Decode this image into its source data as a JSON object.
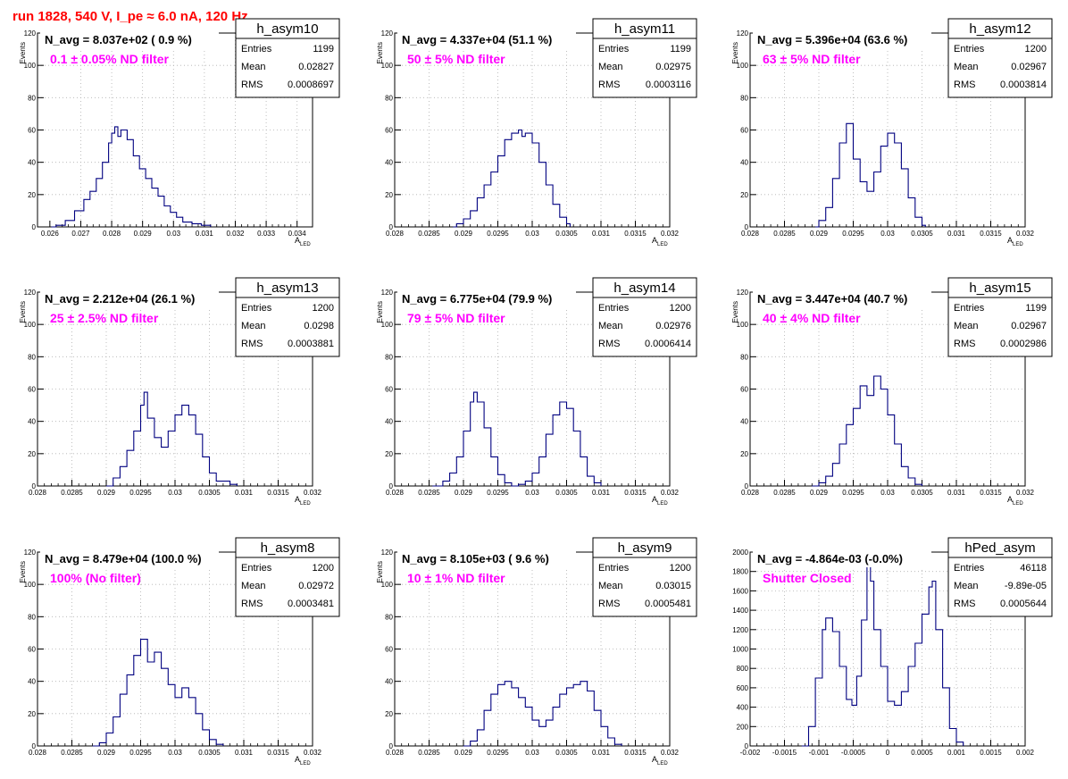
{
  "canvas_title": "run 1828,   540 V, I_pe ≈ 6.0 nA, 120 Hz",
  "colors": {
    "title": "#ff0000",
    "hist": "#000080",
    "annotation": "#ff00ff",
    "grid": "#b0b0b0"
  },
  "chart_data": [
    {
      "type": "histogram",
      "name": "h_asym10",
      "title_text": "N_avg = 8.037e+02 ( 0.9 %)",
      "annotation": "0.1 ± 0.05% ND filter",
      "stats": {
        "entries_label": "Entries",
        "entries": "1199",
        "mean_label": "Mean",
        "mean": "0.02827",
        "rms_label": "RMS",
        "rms": "0.0008697"
      },
      "ylabel": "Events",
      "xlabel": "A",
      "xlabel_sub": "LED",
      "xlim": [
        0.0256,
        0.0345
      ],
      "ylim": [
        0,
        120
      ],
      "xticks": [
        "0.026",
        "0.027",
        "0.028",
        "0.029",
        "0.03",
        "0.031",
        "0.032",
        "0.033",
        "0.034"
      ],
      "xtick_values": [
        0.026,
        0.027,
        0.028,
        0.029,
        0.03,
        0.031,
        0.032,
        0.033,
        0.034
      ],
      "yticks": [
        0,
        20,
        40,
        60,
        80,
        100,
        120
      ],
      "curve": [
        [
          0.02605,
          0
        ],
        [
          0.0262,
          1
        ],
        [
          0.0265,
          4
        ],
        [
          0.0268,
          10
        ],
        [
          0.0271,
          17
        ],
        [
          0.0273,
          22
        ],
        [
          0.0275,
          30
        ],
        [
          0.0277,
          40
        ],
        [
          0.0279,
          52
        ],
        [
          0.028,
          58
        ],
        [
          0.0281,
          62
        ],
        [
          0.0282,
          56
        ],
        [
          0.0283,
          60
        ],
        [
          0.0285,
          54
        ],
        [
          0.0287,
          44
        ],
        [
          0.0289,
          36
        ],
        [
          0.0291,
          30
        ],
        [
          0.0293,
          24
        ],
        [
          0.0295,
          19
        ],
        [
          0.0297,
          13
        ],
        [
          0.0299,
          9
        ],
        [
          0.0301,
          6
        ],
        [
          0.0303,
          3
        ],
        [
          0.0306,
          2
        ],
        [
          0.0309,
          1
        ],
        [
          0.0312,
          0
        ]
      ]
    },
    {
      "type": "histogram",
      "name": "h_asym11",
      "title_text": "N_avg = 4.337e+04 (51.1 %)",
      "annotation": "50 ± 5% ND filter",
      "stats": {
        "entries_label": "Entries",
        "entries": "1199",
        "mean_label": "Mean",
        "mean": "0.02975",
        "rms_label": "RMS",
        "rms": "0.0003116"
      },
      "ylabel": "Events",
      "xlabel": "A",
      "xlabel_sub": "LED",
      "xlim": [
        0.028,
        0.032
      ],
      "ylim": [
        0,
        120
      ],
      "xticks": [
        "0.028",
        "0.0285",
        "0.029",
        "0.0295",
        "0.03",
        "0.0305",
        "0.031",
        "0.0315",
        "0.032"
      ],
      "xtick_values": [
        0.028,
        0.0285,
        0.029,
        0.0295,
        0.03,
        0.0305,
        0.031,
        0.0315,
        0.032
      ],
      "yticks": [
        0,
        20,
        40,
        60,
        80,
        100,
        120
      ],
      "curve": [
        [
          0.02885,
          0
        ],
        [
          0.0289,
          2
        ],
        [
          0.029,
          5
        ],
        [
          0.0291,
          10
        ],
        [
          0.0292,
          18
        ],
        [
          0.0293,
          26
        ],
        [
          0.0294,
          34
        ],
        [
          0.0295,
          44
        ],
        [
          0.0296,
          54
        ],
        [
          0.0297,
          58
        ],
        [
          0.0298,
          60
        ],
        [
          0.02985,
          56
        ],
        [
          0.0299,
          58
        ],
        [
          0.03,
          52
        ],
        [
          0.0301,
          40
        ],
        [
          0.0302,
          26
        ],
        [
          0.0303,
          14
        ],
        [
          0.0304,
          6
        ],
        [
          0.0305,
          2
        ],
        [
          0.03055,
          0
        ]
      ]
    },
    {
      "type": "histogram",
      "name": "h_asym12",
      "title_text": "N_avg = 5.396e+04 (63.6 %)",
      "annotation": "63 ± 5% ND filter",
      "stats": {
        "entries_label": "Entries",
        "entries": "1200",
        "mean_label": "Mean",
        "mean": "0.02967",
        "rms_label": "RMS",
        "rms": "0.0003814"
      },
      "ylabel": "Events",
      "xlabel": "A",
      "xlabel_sub": "LED",
      "xlim": [
        0.028,
        0.032
      ],
      "ylim": [
        0,
        120
      ],
      "xticks": [
        "0.028",
        "0.0285",
        "0.029",
        "0.0295",
        "0.03",
        "0.0305",
        "0.031",
        "0.0315",
        "0.032"
      ],
      "xtick_values": [
        0.028,
        0.0285,
        0.029,
        0.0295,
        0.03,
        0.0305,
        0.031,
        0.0315,
        0.032
      ],
      "yticks": [
        0,
        20,
        40,
        60,
        80,
        100,
        120
      ],
      "curve": [
        [
          0.02895,
          0
        ],
        [
          0.029,
          4
        ],
        [
          0.0291,
          12
        ],
        [
          0.0292,
          30
        ],
        [
          0.0293,
          52
        ],
        [
          0.0294,
          64
        ],
        [
          0.0295,
          42
        ],
        [
          0.0296,
          28
        ],
        [
          0.0297,
          22
        ],
        [
          0.0298,
          34
        ],
        [
          0.0299,
          50
        ],
        [
          0.03,
          58
        ],
        [
          0.0301,
          52
        ],
        [
          0.0302,
          36
        ],
        [
          0.0303,
          18
        ],
        [
          0.0304,
          6
        ],
        [
          0.0305,
          1
        ],
        [
          0.03055,
          0
        ]
      ]
    },
    {
      "type": "histogram",
      "name": "h_asym13",
      "title_text": "N_avg = 2.212e+04 (26.1 %)",
      "annotation": "25 ± 2.5% ND filter",
      "stats": {
        "entries_label": "Entries",
        "entries": "1200",
        "mean_label": "Mean",
        "mean": "0.0298",
        "rms_label": "RMS",
        "rms": "0.0003881"
      },
      "ylabel": "Events",
      "xlabel": "A",
      "xlabel_sub": "LED",
      "xlim": [
        0.028,
        0.032
      ],
      "ylim": [
        0,
        120
      ],
      "xticks": [
        "0.028",
        "0.0285",
        "0.029",
        "0.0295",
        "0.03",
        "0.0305",
        "0.031",
        "0.0315",
        "0.032"
      ],
      "xtick_values": [
        0.028,
        0.0285,
        0.029,
        0.0295,
        0.03,
        0.0305,
        0.031,
        0.0315,
        0.032
      ],
      "yticks": [
        0,
        20,
        40,
        60,
        80,
        100,
        120
      ],
      "curve": [
        [
          0.029,
          0
        ],
        [
          0.0291,
          5
        ],
        [
          0.0292,
          12
        ],
        [
          0.0293,
          22
        ],
        [
          0.0294,
          34
        ],
        [
          0.0295,
          50
        ],
        [
          0.02955,
          58
        ],
        [
          0.0296,
          42
        ],
        [
          0.0297,
          30
        ],
        [
          0.0298,
          24
        ],
        [
          0.0299,
          34
        ],
        [
          0.03,
          44
        ],
        [
          0.0301,
          50
        ],
        [
          0.0302,
          44
        ],
        [
          0.0303,
          32
        ],
        [
          0.0304,
          18
        ],
        [
          0.0305,
          8
        ],
        [
          0.0306,
          3
        ],
        [
          0.0308,
          1
        ],
        [
          0.0309,
          0
        ]
      ]
    },
    {
      "type": "histogram",
      "name": "h_asym14",
      "title_text": "N_avg = 6.775e+04 (79.9 %)",
      "annotation": "79 ± 5% ND filter",
      "stats": {
        "entries_label": "Entries",
        "entries": "1200",
        "mean_label": "Mean",
        "mean": "0.02976",
        "rms_label": "RMS",
        "rms": "0.0006414"
      },
      "ylabel": "Events",
      "xlabel": "A",
      "xlabel_sub": "LED",
      "xlim": [
        0.028,
        0.032
      ],
      "ylim": [
        0,
        120
      ],
      "xticks": [
        "0.028",
        "0.0285",
        "0.029",
        "0.0295",
        "0.03",
        "0.0305",
        "0.031",
        "0.0315",
        "0.032"
      ],
      "xtick_values": [
        0.028,
        0.0285,
        0.029,
        0.0295,
        0.03,
        0.0305,
        0.031,
        0.0315,
        0.032
      ],
      "yticks": [
        0,
        20,
        40,
        60,
        80,
        100,
        120
      ],
      "curve": [
        [
          0.02855,
          0
        ],
        [
          0.0287,
          3
        ],
        [
          0.0288,
          8
        ],
        [
          0.0289,
          18
        ],
        [
          0.029,
          34
        ],
        [
          0.0291,
          52
        ],
        [
          0.02915,
          58
        ],
        [
          0.0292,
          52
        ],
        [
          0.0293,
          36
        ],
        [
          0.0294,
          18
        ],
        [
          0.0295,
          7
        ],
        [
          0.0296,
          2
        ],
        [
          0.0297,
          0
        ],
        [
          0.0298,
          1
        ],
        [
          0.0299,
          3
        ],
        [
          0.03,
          8
        ],
        [
          0.0301,
          18
        ],
        [
          0.0302,
          32
        ],
        [
          0.0303,
          44
        ],
        [
          0.0304,
          52
        ],
        [
          0.0305,
          48
        ],
        [
          0.0306,
          34
        ],
        [
          0.0307,
          18
        ],
        [
          0.0308,
          6
        ],
        [
          0.0309,
          2
        ],
        [
          0.031,
          0
        ]
      ]
    },
    {
      "type": "histogram",
      "name": "h_asym15",
      "title_text": "N_avg = 3.447e+04 (40.7 %)",
      "annotation": "40 ± 4% ND filter",
      "stats": {
        "entries_label": "Entries",
        "entries": "1199",
        "mean_label": "Mean",
        "mean": "0.02967",
        "rms_label": "RMS",
        "rms": "0.0002986"
      },
      "ylabel": "Events",
      "xlabel": "A",
      "xlabel_sub": "LED",
      "xlim": [
        0.028,
        0.032
      ],
      "ylim": [
        0,
        120
      ],
      "xticks": [
        "0.028",
        "0.0285",
        "0.029",
        "0.0295",
        "0.03",
        "0.0305",
        "0.031",
        "0.0315",
        "0.032"
      ],
      "xtick_values": [
        0.028,
        0.0285,
        0.029,
        0.0295,
        0.03,
        0.0305,
        0.031,
        0.0315,
        0.032
      ],
      "yticks": [
        0,
        20,
        40,
        60,
        80,
        100,
        120
      ],
      "curve": [
        [
          0.0289,
          0
        ],
        [
          0.029,
          2
        ],
        [
          0.0291,
          6
        ],
        [
          0.0292,
          14
        ],
        [
          0.0293,
          26
        ],
        [
          0.0294,
          38
        ],
        [
          0.0295,
          48
        ],
        [
          0.0296,
          62
        ],
        [
          0.0297,
          56
        ],
        [
          0.0298,
          68
        ],
        [
          0.0299,
          60
        ],
        [
          0.03,
          44
        ],
        [
          0.0301,
          26
        ],
        [
          0.0302,
          12
        ],
        [
          0.0303,
          5
        ],
        [
          0.0304,
          1
        ],
        [
          0.0305,
          0
        ]
      ]
    },
    {
      "type": "histogram",
      "name": "h_asym8",
      "title_text": "N_avg = 8.479e+04 (100.0 %)",
      "annotation": "100% (No filter)",
      "stats": {
        "entries_label": "Entries",
        "entries": "1200",
        "mean_label": "Mean",
        "mean": "0.02972",
        "rms_label": "RMS",
        "rms": "0.0003481"
      },
      "ylabel": "Events",
      "xlabel": "A",
      "xlabel_sub": "LED",
      "xlim": [
        0.028,
        0.032
      ],
      "ylim": [
        0,
        120
      ],
      "xticks": [
        "0.028",
        "0.0285",
        "0.029",
        "0.0295",
        "0.03",
        "0.0305",
        "0.031",
        "0.0315",
        "0.032"
      ],
      "xtick_values": [
        0.028,
        0.0285,
        0.029,
        0.0295,
        0.03,
        0.0305,
        0.031,
        0.0315,
        0.032
      ],
      "yticks": [
        0,
        20,
        40,
        60,
        80,
        100,
        120
      ],
      "curve": [
        [
          0.0288,
          0
        ],
        [
          0.0289,
          2
        ],
        [
          0.029,
          8
        ],
        [
          0.0291,
          18
        ],
        [
          0.0292,
          32
        ],
        [
          0.0293,
          44
        ],
        [
          0.0294,
          56
        ],
        [
          0.0295,
          66
        ],
        [
          0.0296,
          52
        ],
        [
          0.0297,
          58
        ],
        [
          0.0298,
          48
        ],
        [
          0.0299,
          38
        ],
        [
          0.03,
          30
        ],
        [
          0.0301,
          36
        ],
        [
          0.0302,
          30
        ],
        [
          0.0303,
          20
        ],
        [
          0.0304,
          10
        ],
        [
          0.0305,
          4
        ],
        [
          0.0306,
          1
        ],
        [
          0.0307,
          0
        ]
      ]
    },
    {
      "type": "histogram",
      "name": "h_asym9",
      "title_text": "N_avg = 8.105e+03 ( 9.6 %)",
      "annotation": "10 ± 1% ND filter",
      "stats": {
        "entries_label": "Entries",
        "entries": "1200",
        "mean_label": "Mean",
        "mean": "0.03015",
        "rms_label": "RMS",
        "rms": "0.0005481"
      },
      "ylabel": "Events",
      "xlabel": "A",
      "xlabel_sub": "LED",
      "xlim": [
        0.028,
        0.032
      ],
      "ylim": [
        0,
        120
      ],
      "xticks": [
        "0.028",
        "0.0285",
        "0.029",
        "0.0295",
        "0.03",
        "0.0305",
        "0.031",
        "0.0315",
        "0.032"
      ],
      "xtick_values": [
        0.028,
        0.0285,
        0.029,
        0.0295,
        0.03,
        0.0305,
        0.031,
        0.0315,
        0.032
      ],
      "yticks": [
        0,
        20,
        40,
        60,
        80,
        100,
        120
      ],
      "curve": [
        [
          0.029,
          0
        ],
        [
          0.0291,
          3
        ],
        [
          0.0292,
          10
        ],
        [
          0.0293,
          22
        ],
        [
          0.0294,
          32
        ],
        [
          0.0295,
          38
        ],
        [
          0.0296,
          40
        ],
        [
          0.0297,
          36
        ],
        [
          0.0298,
          30
        ],
        [
          0.0299,
          24
        ],
        [
          0.03,
          16
        ],
        [
          0.0301,
          12
        ],
        [
          0.0302,
          16
        ],
        [
          0.0303,
          24
        ],
        [
          0.0304,
          32
        ],
        [
          0.0305,
          36
        ],
        [
          0.0306,
          38
        ],
        [
          0.0307,
          40
        ],
        [
          0.0308,
          34
        ],
        [
          0.0309,
          22
        ],
        [
          0.031,
          12
        ],
        [
          0.0311,
          5
        ],
        [
          0.0312,
          1
        ],
        [
          0.0313,
          0
        ]
      ]
    },
    {
      "type": "histogram",
      "name": "hPed_asym",
      "title_text": "N_avg = -4.864e-03 (-0.0%)",
      "annotation": "Shutter Closed",
      "stats": {
        "entries_label": "Entries",
        "entries": "46118",
        "mean_label": "Mean",
        "mean": "-9.89e-05",
        "rms_label": "RMS",
        "rms": "0.0005644"
      },
      "ylabel": "",
      "xlabel": "",
      "xlabel_sub": "",
      "xlim": [
        -0.002,
        0.002
      ],
      "ylim": [
        0,
        2000
      ],
      "xticks": [
        "-0.002",
        "-0.0015",
        "-0.001",
        "-0.0005",
        "0",
        "0.0005",
        "0.001",
        "0.0015",
        "0.002"
      ],
      "xtick_values": [
        -0.002,
        -0.0015,
        -0.001,
        -0.0005,
        0,
        0.0005,
        0.001,
        0.0015,
        0.002
      ],
      "yticks": [
        0,
        200,
        400,
        600,
        800,
        1000,
        1200,
        1400,
        1600,
        1800,
        2000
      ],
      "curve": [
        [
          -0.00125,
          0
        ],
        [
          -0.00115,
          200
        ],
        [
          -0.00105,
          700
        ],
        [
          -0.00095,
          1200
        ],
        [
          -0.0009,
          1320
        ],
        [
          -0.0008,
          1180
        ],
        [
          -0.0007,
          820
        ],
        [
          -0.0006,
          480
        ],
        [
          -0.00052,
          420
        ],
        [
          -0.00045,
          720
        ],
        [
          -0.00038,
          1300
        ],
        [
          -0.0003,
          1860
        ],
        [
          -0.00025,
          1700
        ],
        [
          -0.0002,
          1200
        ],
        [
          -0.0001,
          820
        ],
        [
          0.0,
          460
        ],
        [
          0.0001,
          420
        ],
        [
          0.0002,
          560
        ],
        [
          0.0003,
          820
        ],
        [
          0.0004,
          1060
        ],
        [
          0.0005,
          1360
        ],
        [
          0.0006,
          1640
        ],
        [
          0.00065,
          1700
        ],
        [
          0.0007,
          1200
        ],
        [
          0.0008,
          600
        ],
        [
          0.0009,
          180
        ],
        [
          0.001,
          40
        ],
        [
          0.0011,
          0
        ]
      ]
    }
  ]
}
